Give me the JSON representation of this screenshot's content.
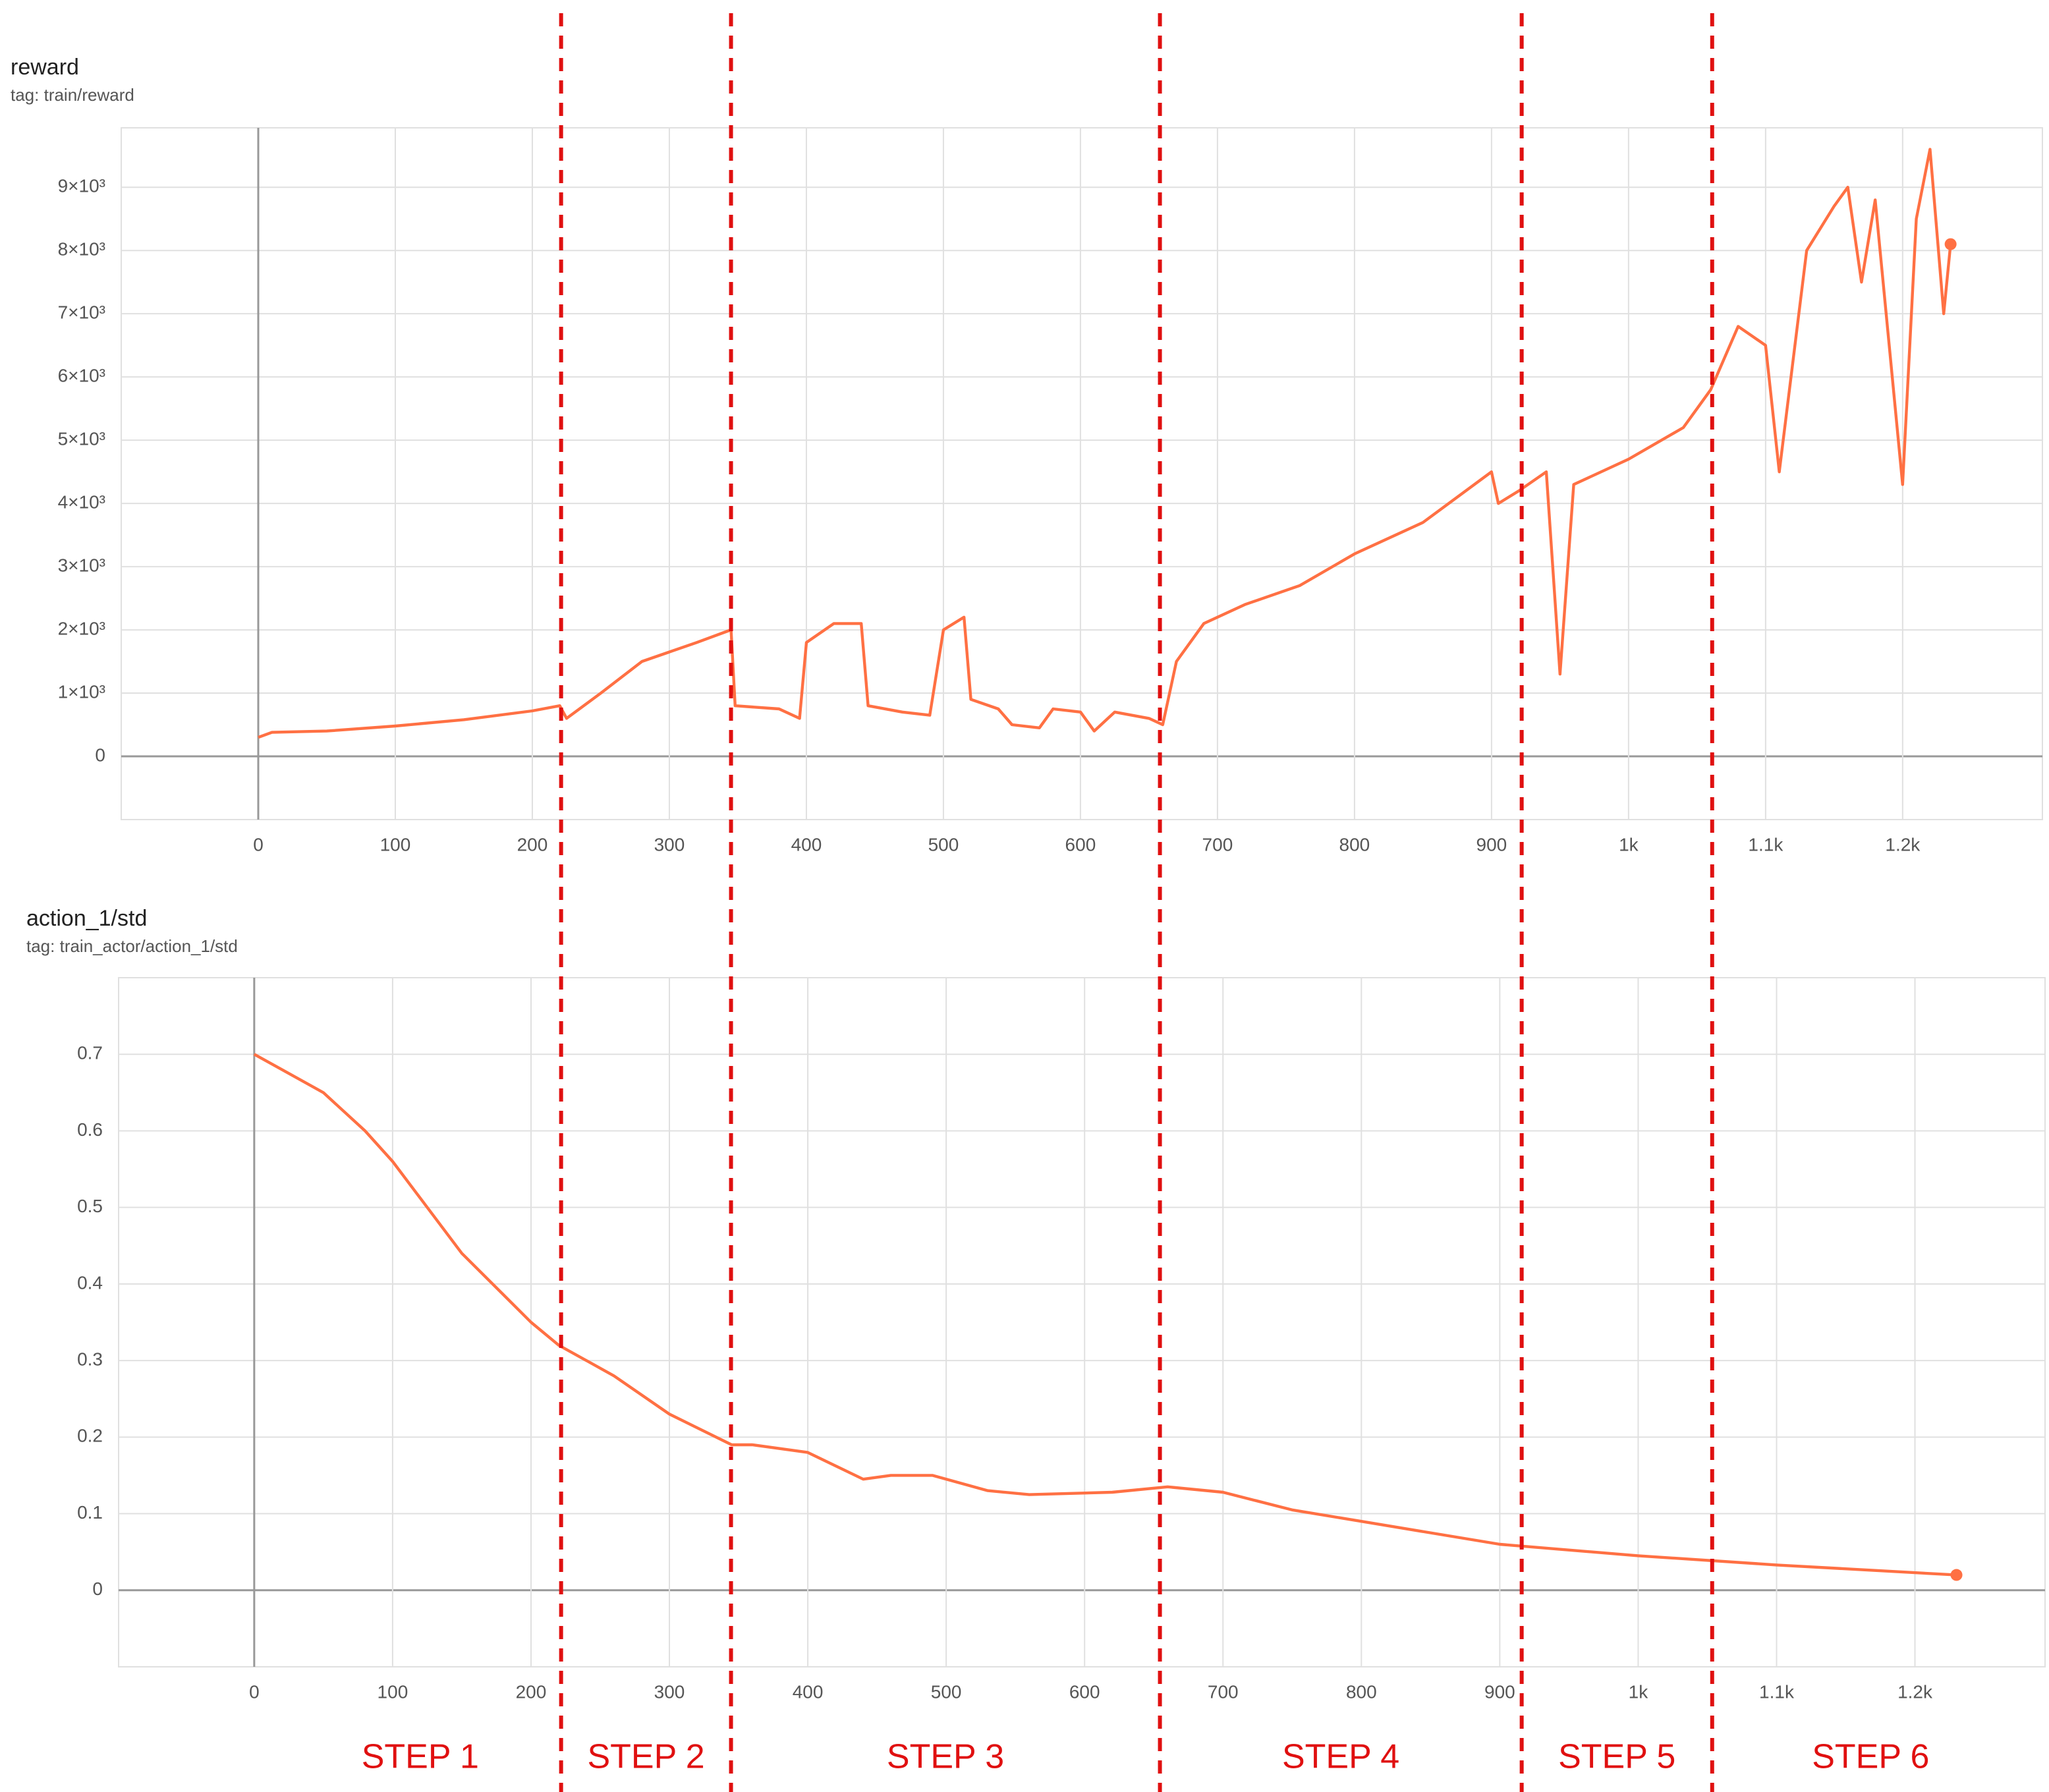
{
  "chart_data": [
    {
      "type": "line",
      "title": "reward",
      "subtitle": "tag: train/reward",
      "color": "#ff7043",
      "x": [
        0,
        10,
        50,
        100,
        150,
        200,
        220,
        225,
        250,
        280,
        320,
        345,
        348,
        380,
        395,
        400,
        420,
        440,
        445,
        470,
        490,
        500,
        515,
        520,
        540,
        550,
        570,
        580,
        600,
        610,
        625,
        650,
        660,
        670,
        690,
        720,
        760,
        800,
        850,
        900,
        905,
        920,
        940,
        950,
        960,
        1000,
        1040,
        1060,
        1080,
        1100,
        1110,
        1130,
        1150,
        1160,
        1170,
        1180,
        1200,
        1210,
        1220,
        1230,
        1235
      ],
      "values": [
        300,
        380,
        400,
        480,
        580,
        720,
        800,
        600,
        1000,
        1500,
        1800,
        2000,
        800,
        750,
        600,
        1800,
        2100,
        2100,
        800,
        700,
        650,
        2000,
        2200,
        900,
        750,
        500,
        450,
        750,
        700,
        400,
        700,
        600,
        500,
        1500,
        2100,
        2400,
        2700,
        3200,
        3700,
        4500,
        4000,
        4200,
        4500,
        1300,
        4300,
        4700,
        5200,
        5800,
        6800,
        6500,
        4500,
        8000,
        8700,
        9000,
        7500,
        8800,
        4300,
        8500,
        9600,
        7000,
        8100
      ],
      "xlim": [
        -100,
        1302
      ],
      "ylim": [
        -1000,
        9940
      ],
      "xticks": [
        0,
        100,
        200,
        300,
        400,
        500,
        600,
        700,
        800,
        900,
        {
          "value": 1000,
          "label": "1k"
        },
        {
          "value": 1100,
          "label": "1.1k"
        },
        {
          "value": 1200,
          "label": "1.2k"
        }
      ],
      "yticks": [
        0,
        {
          "value": 1000,
          "label": "1×10³"
        },
        {
          "value": 2000,
          "label": "2×10³"
        },
        {
          "value": 3000,
          "label": "3×10³"
        },
        {
          "value": 4000,
          "label": "4×10³"
        },
        {
          "value": 5000,
          "label": "5×10³"
        },
        {
          "value": 6000,
          "label": "6×10³"
        },
        {
          "value": 7000,
          "label": "7×10³"
        },
        {
          "value": 8000,
          "label": "8×10³"
        },
        {
          "value": 9000,
          "label": "9×10³"
        }
      ],
      "grid": true
    },
    {
      "type": "line",
      "title": "action_1/std",
      "subtitle": "tag: train_actor/action_1/std",
      "color": "#ff7043",
      "x": [
        0,
        20,
        50,
        80,
        100,
        150,
        200,
        220,
        260,
        300,
        345,
        360,
        400,
        440,
        460,
        490,
        530,
        560,
        620,
        660,
        700,
        750,
        800,
        900,
        1000,
        1100,
        1230
      ],
      "values": [
        0.7,
        0.68,
        0.65,
        0.6,
        0.56,
        0.44,
        0.35,
        0.32,
        0.28,
        0.23,
        0.19,
        0.19,
        0.18,
        0.145,
        0.15,
        0.15,
        0.13,
        0.125,
        0.128,
        0.135,
        0.128,
        0.105,
        0.09,
        0.06,
        0.045,
        0.033,
        0.02
      ],
      "xlim": [
        -98,
        1294
      ],
      "ylim": [
        -0.1,
        0.8
      ],
      "xticks": [
        0,
        100,
        200,
        300,
        400,
        500,
        600,
        700,
        800,
        900,
        {
          "value": 1000,
          "label": "1k"
        },
        {
          "value": 1100,
          "label": "1.1k"
        },
        {
          "value": 1200,
          "label": "1.2k"
        }
      ],
      "yticks": [
        0,
        0.1,
        0.2,
        0.3,
        0.4,
        0.5,
        0.6,
        0.7
      ],
      "grid": true
    }
  ],
  "steps": {
    "boundaries": [
      221,
      345,
      658,
      922,
      1061
    ],
    "labels": [
      "STEP 1",
      "STEP 2",
      "STEP 3",
      "STEP 4",
      "STEP 5",
      "STEP 6"
    ]
  }
}
